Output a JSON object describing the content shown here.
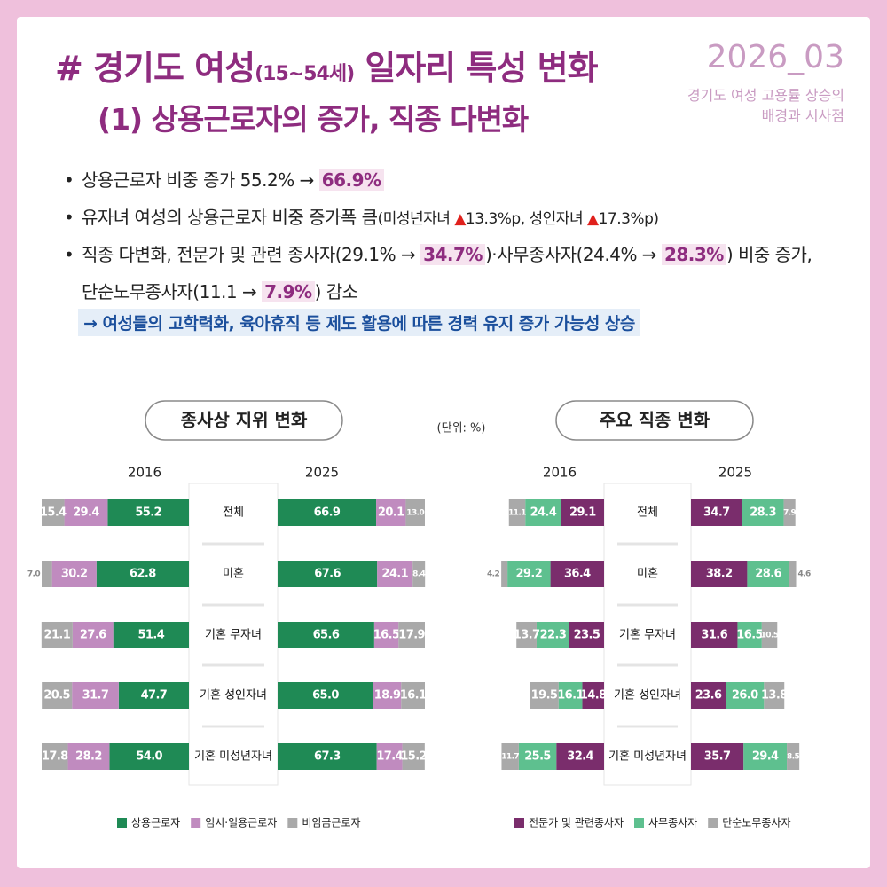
{
  "header": {
    "title_part1": "# 경기도 여성",
    "title_age": "(15~54세)",
    "title_part2": "일자리 특성 변화",
    "subtitle": "(1) 상용근로자의 증가, 직종 다변화",
    "issue": "2026_03",
    "report_title": [
      "경기도 여성 고용률 상승의",
      "배경과 시사점"
    ]
  },
  "bullets": [
    [
      [
        {
          "text": "상용근로자 비중 증가 55.2% → ",
          "style": "plain"
        },
        {
          "text": "66.9%",
          "style": "hl"
        }
      ]
    ],
    [
      [
        {
          "text": "유자녀 여성의 상용근로자 비중 증가폭 큼",
          "style": "plain"
        },
        {
          "text": "(미성년자녀 ",
          "style": "small"
        },
        {
          "text": "▲",
          "style": "red"
        },
        {
          "text": "13.3%p, 성인자녀 ",
          "style": "small"
        },
        {
          "text": "▲",
          "style": "red"
        },
        {
          "text": "17.3%p)",
          "style": "small"
        }
      ]
    ],
    [
      [
        {
          "text": "직종 다변화, 전문가 및 관련 종사자(29.1% → ",
          "style": "plain"
        },
        {
          "text": "34.7%",
          "style": "hl"
        },
        {
          "text": ")·사무종사자(24.4% → ",
          "style": "plain"
        },
        {
          "text": "28.3%",
          "style": "hl"
        },
        {
          "text": ") 비중 증가,",
          "style": "plain"
        }
      ],
      [
        {
          "text": "단순노무종사자(11.1 → ",
          "style": "plain"
        },
        {
          "text": "7.9%",
          "style": "hl"
        },
        {
          "text": ") 감소",
          "style": "plain"
        }
      ]
    ]
  ],
  "conclusion": "→ 여성들의 고학력화, 육아휴직 등 제도 활용에 따른 경력 유지 증가 가능성 상승",
  "unit": "(단위: %)",
  "chart_data": [
    {
      "type": "bar",
      "stacked": true,
      "title": "종사상 지위 변화",
      "years": [
        "2016",
        "2025"
      ],
      "categories": [
        "전체",
        "미혼",
        "기혼 무자녀",
        "기혼 성인자녀",
        "기혼 미성년자녀"
      ],
      "xlim": [
        0,
        100
      ],
      "series": [
        {
          "name": "상용근로자",
          "color": "#1f8a55",
          "values": [
            [
              55.2,
              62.8,
              51.4,
              47.7,
              54.0
            ],
            [
              66.9,
              67.6,
              65.6,
              65.0,
              67.3
            ]
          ],
          "value_labels": [
            [
              "55.2",
              "62.8",
              "51.4",
              "47.7",
              "54.0"
            ],
            [
              "66.9",
              "67.6",
              "65.6",
              "65.0",
              "67.3"
            ]
          ]
        },
        {
          "name": "임시·일용근로자",
          "color": "#c08bbf",
          "values": [
            [
              29.4,
              30.2,
              27.6,
              31.7,
              28.2
            ],
            [
              20.1,
              24.1,
              16.5,
              18.9,
              17.4
            ]
          ],
          "value_labels": [
            [
              "29.4",
              "30.2",
              "27.6",
              "31.7",
              "28.2"
            ],
            [
              "20.1",
              "24.1",
              "16.5",
              "18.9",
              "17.4"
            ]
          ]
        },
        {
          "name": "비임금근로자",
          "color": "#a9a9a9",
          "values": [
            [
              15.4,
              7.0,
              21.1,
              20.5,
              17.8
            ],
            [
              13.0,
              8.4,
              17.9,
              16.1,
              15.2
            ]
          ],
          "value_labels": [
            [
              "15.4",
              "7.0",
              "21.1",
              "20.5",
              "17.8"
            ],
            [
              "13.0",
              "8.4",
              "17.9",
              "16.1",
              "15.2"
            ]
          ]
        }
      ]
    },
    {
      "type": "bar",
      "stacked": true,
      "title": "주요 직종 변화",
      "years": [
        "2016",
        "2025"
      ],
      "categories": [
        "전체",
        "미혼",
        "기혼 무자녀",
        "기혼 성인자녀",
        "기혼 미성년자녀"
      ],
      "xlim": [
        0,
        100
      ],
      "series": [
        {
          "name": "전문가 및 관련종사자",
          "color": "#7a2d6c",
          "values": [
            [
              29.1,
              36.4,
              23.5,
              14.8,
              32.4
            ],
            [
              34.7,
              38.2,
              31.6,
              23.6,
              35.7
            ]
          ],
          "value_labels": [
            [
              "29.1",
              "36.4",
              "23.5",
              "14.8",
              "32.4"
            ],
            [
              "34.7",
              "38.2",
              "31.6",
              "23.6",
              "35.7"
            ]
          ]
        },
        {
          "name": "사무종사자",
          "color": "#5ec08f",
          "values": [
            [
              24.4,
              29.2,
              22.3,
              16.1,
              25.5
            ],
            [
              28.3,
              28.6,
              16.5,
              26.0,
              29.4
            ]
          ],
          "value_labels": [
            [
              "24.4",
              "29.2",
              "22.3",
              "16.1",
              "25.5"
            ],
            [
              "28.3",
              "28.6",
              "16.5",
              "26.0",
              "29.4"
            ]
          ]
        },
        {
          "name": "단순노무종사자",
          "color": "#a9a9a9",
          "values": [
            [
              11.1,
              4.2,
              13.7,
              19.5,
              11.7
            ],
            [
              7.9,
              4.6,
              10.5,
              13.8,
              8.5
            ]
          ],
          "value_labels": [
            [
              "11.1",
              "4.2",
              "13.7",
              "19.5",
              "11.7"
            ],
            [
              "7.9",
              "4.6",
              "10.5",
              "13.8",
              "8.5"
            ]
          ]
        }
      ]
    }
  ]
}
